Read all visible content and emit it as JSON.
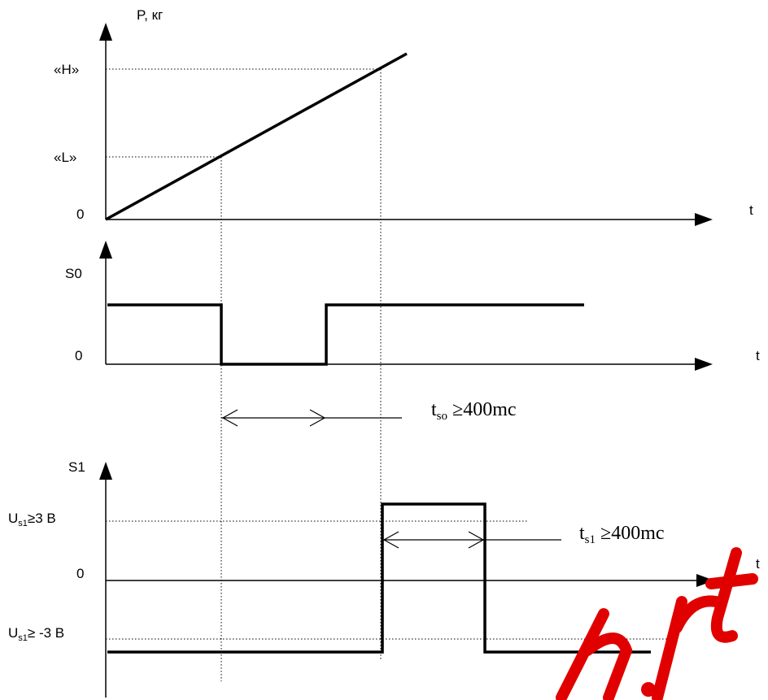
{
  "top_graph": {
    "y_label": "P, кг",
    "tick_h": "«H»",
    "tick_l": "«L»",
    "tick_zero": "0",
    "x_label": "t"
  },
  "s0_graph": {
    "y_label": "S0",
    "tick_zero": "0",
    "x_label": "t"
  },
  "tso_annotation": {
    "base": "t",
    "sub": "so",
    "rest": " ≥400mc"
  },
  "s1_graph": {
    "y_label": "S1",
    "tick_high_main": "U",
    "tick_high_sub": "s1",
    "tick_high_rest": "≥3 B",
    "tick_zero": "0",
    "tick_low_main": "U",
    "tick_low_sub": "s1",
    "tick_low_rest": "≥ -3 B",
    "x_label": "t"
  },
  "ts1_annotation": {
    "base": "t",
    "sub": "s1",
    "rest": " ≥400mc"
  },
  "colors": {
    "line": "#000000",
    "watermark": "#e00000"
  }
}
